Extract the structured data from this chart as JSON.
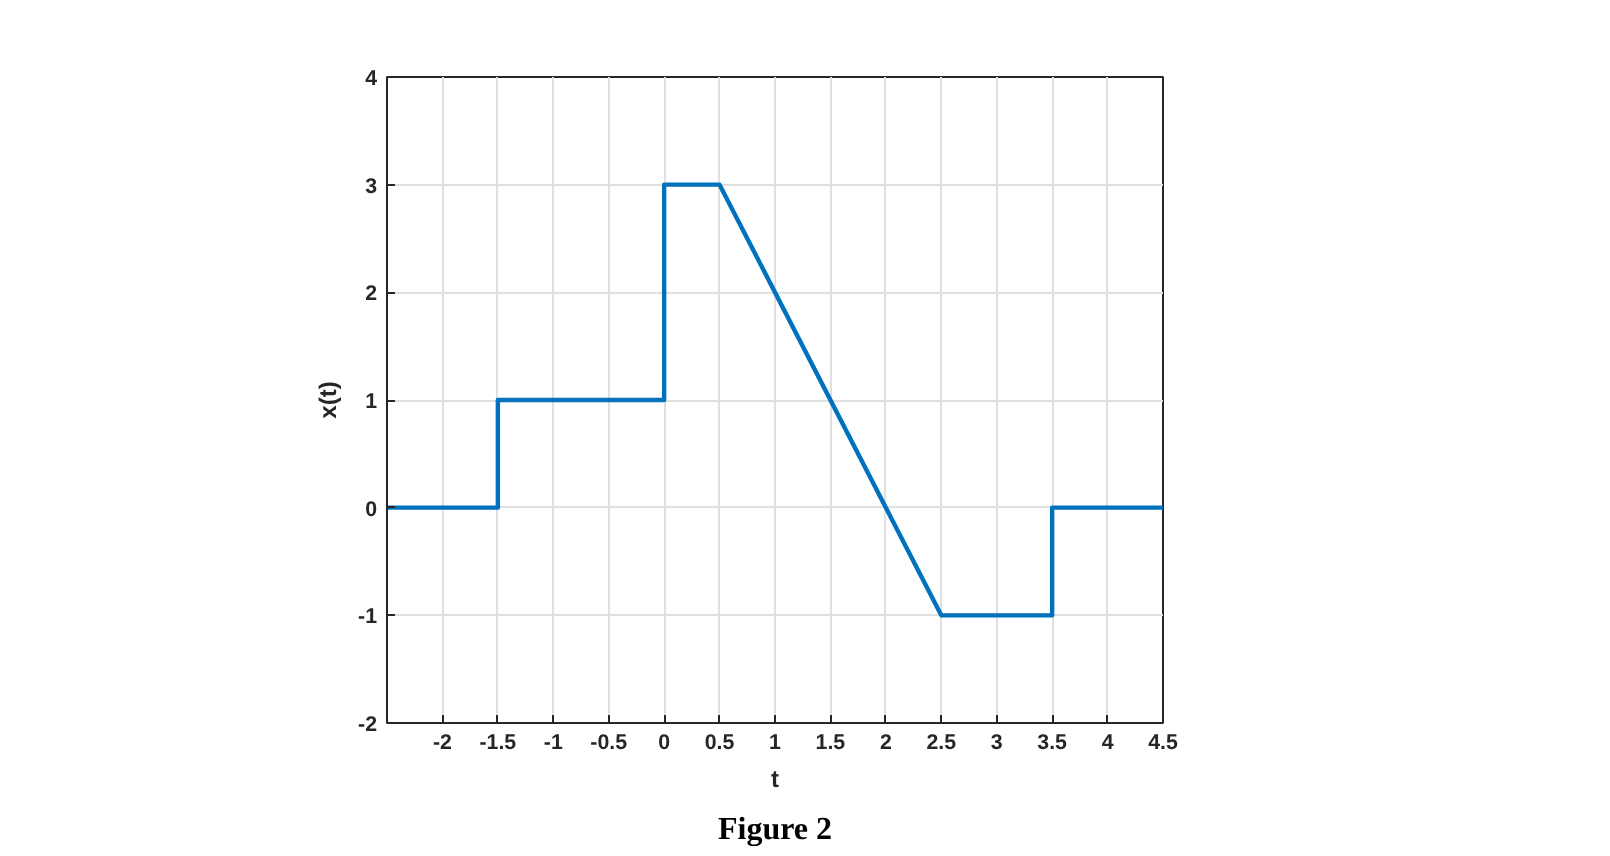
{
  "chart_data": {
    "type": "line",
    "xlabel": "t",
    "ylabel": "x(t)",
    "annotations": [
      "Figure 2"
    ],
    "x": [
      -2.5,
      -1.5,
      -1.5,
      0,
      0,
      0.5,
      2.5,
      3.5,
      3.5,
      4.5
    ],
    "series": [
      {
        "color": "#0072bd",
        "values": [
          0,
          0,
          1,
          1,
          3,
          3,
          -1,
          -1,
          0,
          0
        ]
      }
    ],
    "xlim": [
      -2.5,
      4.5
    ],
    "xticks": [
      -2,
      -1.5,
      -1,
      -0.5,
      0,
      0.5,
      1,
      1.5,
      2,
      2.5,
      3,
      3.5,
      4,
      4.5
    ],
    "ylim": [
      -2,
      4
    ],
    "yticks": [
      -2,
      -1,
      0,
      1,
      2,
      3,
      4
    ],
    "grid": true,
    "line_style": "solid",
    "marker": "none"
  }
}
